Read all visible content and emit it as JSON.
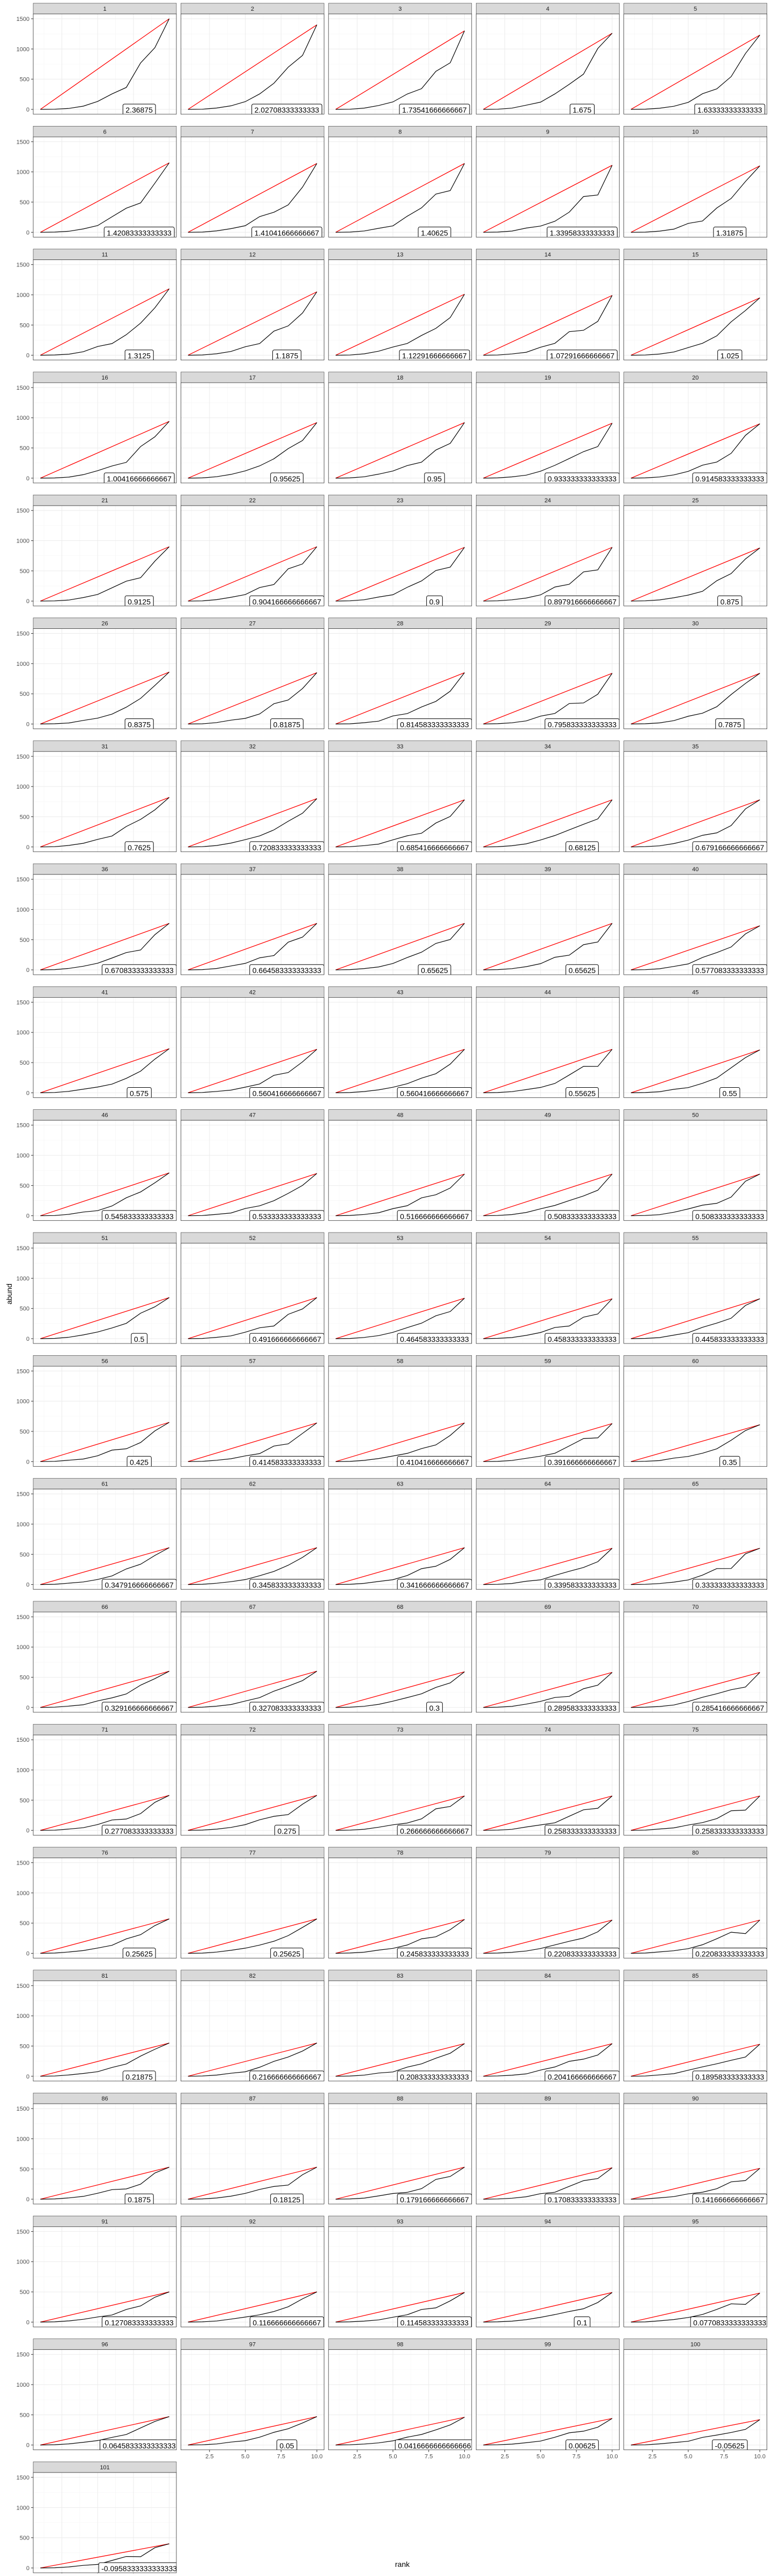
{
  "chart_data": {
    "type": "line",
    "layout": "facet-grid",
    "xlabel": "rank",
    "ylabel": "abund",
    "xlim": [
      0.5,
      10.5
    ],
    "ylim": [
      -80,
      1580
    ],
    "x_ticks": [
      2.5,
      5.0,
      7.5,
      10.0
    ],
    "x_tick_labels": [
      "2.5",
      "5.0",
      "7.5",
      "10.0"
    ],
    "y_ticks": [
      0,
      500,
      1000,
      1500
    ],
    "y_tick_labels": [
      "0",
      "500",
      "1000",
      "1500"
    ],
    "grid": true,
    "colors": {
      "observed_line": "#000000",
      "reference_line": "#ff0000",
      "strip_background": "#d9d9d9",
      "panel_border": "#333333",
      "grid_major": "#ebebeb",
      "grid_minor": "#f5f5f5"
    },
    "panels": [
      {
        "id": "1",
        "label": "2.36875",
        "ymax": 1500
      },
      {
        "id": "2",
        "label": "2.02708333333333",
        "ymax": 1400
      },
      {
        "id": "3",
        "label": "1.73541666666667",
        "ymax": 1300
      },
      {
        "id": "4",
        "label": "1.675",
        "ymax": 1260
      },
      {
        "id": "5",
        "label": "1.63333333333333",
        "ymax": 1230
      },
      {
        "id": "6",
        "label": "1.42083333333333",
        "ymax": 1150
      },
      {
        "id": "7",
        "label": "1.41041666666667",
        "ymax": 1140
      },
      {
        "id": "8",
        "label": "1.40625",
        "ymax": 1140
      },
      {
        "id": "9",
        "label": "1.33958333333333",
        "ymax": 1110
      },
      {
        "id": "10",
        "label": "1.31875",
        "ymax": 1100
      },
      {
        "id": "11",
        "label": "1.3125",
        "ymax": 1100
      },
      {
        "id": "12",
        "label": "1.1875",
        "ymax": 1050
      },
      {
        "id": "13",
        "label": "1.12291666666667",
        "ymax": 1010
      },
      {
        "id": "14",
        "label": "1.07291666666667",
        "ymax": 990
      },
      {
        "id": "15",
        "label": "1.025",
        "ymax": 950
      },
      {
        "id": "16",
        "label": "1.00416666666667",
        "ymax": 940
      },
      {
        "id": "17",
        "label": "0.95625",
        "ymax": 920
      },
      {
        "id": "18",
        "label": "0.95",
        "ymax": 920
      },
      {
        "id": "19",
        "label": "0.933333333333333",
        "ymax": 910
      },
      {
        "id": "20",
        "label": "0.914583333333333",
        "ymax": 900
      },
      {
        "id": "21",
        "label": "0.9125",
        "ymax": 900
      },
      {
        "id": "22",
        "label": "0.904166666666667",
        "ymax": 900
      },
      {
        "id": "23",
        "label": "0.9",
        "ymax": 890
      },
      {
        "id": "24",
        "label": "0.897916666666667",
        "ymax": 890
      },
      {
        "id": "25",
        "label": "0.875",
        "ymax": 880
      },
      {
        "id": "26",
        "label": "0.8375",
        "ymax": 860
      },
      {
        "id": "27",
        "label": "0.81875",
        "ymax": 850
      },
      {
        "id": "28",
        "label": "0.814583333333333",
        "ymax": 850
      },
      {
        "id": "29",
        "label": "0.795833333333333",
        "ymax": 840
      },
      {
        "id": "30",
        "label": "0.7875",
        "ymax": 840
      },
      {
        "id": "31",
        "label": "0.7625",
        "ymax": 820
      },
      {
        "id": "32",
        "label": "0.720833333333333",
        "ymax": 800
      },
      {
        "id": "33",
        "label": "0.685416666666667",
        "ymax": 780
      },
      {
        "id": "34",
        "label": "0.68125",
        "ymax": 780
      },
      {
        "id": "35",
        "label": "0.679166666666667",
        "ymax": 780
      },
      {
        "id": "36",
        "label": "0.670833333333333",
        "ymax": 770
      },
      {
        "id": "37",
        "label": "0.664583333333333",
        "ymax": 770
      },
      {
        "id": "38",
        "label": "0.65625",
        "ymax": 770
      },
      {
        "id": "39",
        "label": "0.65625",
        "ymax": 770
      },
      {
        "id": "40",
        "label": "0.577083333333333",
        "ymax": 730
      },
      {
        "id": "41",
        "label": "0.575",
        "ymax": 730
      },
      {
        "id": "42",
        "label": "0.560416666666667",
        "ymax": 720
      },
      {
        "id": "43",
        "label": "0.560416666666667",
        "ymax": 720
      },
      {
        "id": "44",
        "label": "0.55625",
        "ymax": 720
      },
      {
        "id": "45",
        "label": "0.55",
        "ymax": 710
      },
      {
        "id": "46",
        "label": "0.545833333333333",
        "ymax": 710
      },
      {
        "id": "47",
        "label": "0.533333333333333",
        "ymax": 700
      },
      {
        "id": "48",
        "label": "0.516666666666667",
        "ymax": 690
      },
      {
        "id": "49",
        "label": "0.508333333333333",
        "ymax": 690
      },
      {
        "id": "50",
        "label": "0.508333333333333",
        "ymax": 690
      },
      {
        "id": "51",
        "label": "0.5",
        "ymax": 680
      },
      {
        "id": "52",
        "label": "0.491666666666667",
        "ymax": 680
      },
      {
        "id": "53",
        "label": "0.464583333333333",
        "ymax": 670
      },
      {
        "id": "54",
        "label": "0.458333333333333",
        "ymax": 660
      },
      {
        "id": "55",
        "label": "0.445833333333333",
        "ymax": 660
      },
      {
        "id": "56",
        "label": "0.425",
        "ymax": 650
      },
      {
        "id": "57",
        "label": "0.414583333333333",
        "ymax": 640
      },
      {
        "id": "58",
        "label": "0.410416666666667",
        "ymax": 640
      },
      {
        "id": "59",
        "label": "0.391666666666667",
        "ymax": 630
      },
      {
        "id": "60",
        "label": "0.35",
        "ymax": 610
      },
      {
        "id": "61",
        "label": "0.347916666666667",
        "ymax": 610
      },
      {
        "id": "62",
        "label": "0.345833333333333",
        "ymax": 610
      },
      {
        "id": "63",
        "label": "0.341666666666667",
        "ymax": 610
      },
      {
        "id": "64",
        "label": "0.339583333333333",
        "ymax": 600
      },
      {
        "id": "65",
        "label": "0.333333333333333",
        "ymax": 600
      },
      {
        "id": "66",
        "label": "0.329166666666667",
        "ymax": 600
      },
      {
        "id": "67",
        "label": "0.327083333333333",
        "ymax": 600
      },
      {
        "id": "68",
        "label": "0.3",
        "ymax": 590
      },
      {
        "id": "69",
        "label": "0.289583333333333",
        "ymax": 580
      },
      {
        "id": "70",
        "label": "0.285416666666667",
        "ymax": 580
      },
      {
        "id": "71",
        "label": "0.277083333333333",
        "ymax": 580
      },
      {
        "id": "72",
        "label": "0.275",
        "ymax": 580
      },
      {
        "id": "73",
        "label": "0.266666666666667",
        "ymax": 570
      },
      {
        "id": "74",
        "label": "0.258333333333333",
        "ymax": 570
      },
      {
        "id": "75",
        "label": "0.258333333333333",
        "ymax": 570
      },
      {
        "id": "76",
        "label": "0.25625",
        "ymax": 570
      },
      {
        "id": "77",
        "label": "0.25625",
        "ymax": 570
      },
      {
        "id": "78",
        "label": "0.245833333333333",
        "ymax": 560
      },
      {
        "id": "79",
        "label": "0.220833333333333",
        "ymax": 550
      },
      {
        "id": "80",
        "label": "0.220833333333333",
        "ymax": 550
      },
      {
        "id": "81",
        "label": "0.21875",
        "ymax": 550
      },
      {
        "id": "82",
        "label": "0.216666666666667",
        "ymax": 550
      },
      {
        "id": "83",
        "label": "0.208333333333333",
        "ymax": 540
      },
      {
        "id": "84",
        "label": "0.204166666666667",
        "ymax": 540
      },
      {
        "id": "85",
        "label": "0.189583333333333",
        "ymax": 530
      },
      {
        "id": "86",
        "label": "0.1875",
        "ymax": 530
      },
      {
        "id": "87",
        "label": "0.18125",
        "ymax": 530
      },
      {
        "id": "88",
        "label": "0.179166666666667",
        "ymax": 530
      },
      {
        "id": "89",
        "label": "0.170833333333333",
        "ymax": 520
      },
      {
        "id": "90",
        "label": "0.141666666666667",
        "ymax": 510
      },
      {
        "id": "91",
        "label": "0.127083333333333",
        "ymax": 500
      },
      {
        "id": "92",
        "label": "0.116666666666667",
        "ymax": 500
      },
      {
        "id": "93",
        "label": "0.114583333333333",
        "ymax": 490
      },
      {
        "id": "94",
        "label": "0.1",
        "ymax": 490
      },
      {
        "id": "95",
        "label": "0.0770833333333333",
        "ymax": 480
      },
      {
        "id": "96",
        "label": "0.0645833333333333",
        "ymax": 470
      },
      {
        "id": "97",
        "label": "0.05",
        "ymax": 470
      },
      {
        "id": "98",
        "label": "0.0416666666666666",
        "ymax": 460
      },
      {
        "id": "99",
        "label": "0.00625",
        "ymax": 440
      },
      {
        "id": "100",
        "label": "-0.05625",
        "ymax": 420
      },
      {
        "id": "101",
        "label": "-0.0958333333333333",
        "ymax": 400
      }
    ]
  }
}
